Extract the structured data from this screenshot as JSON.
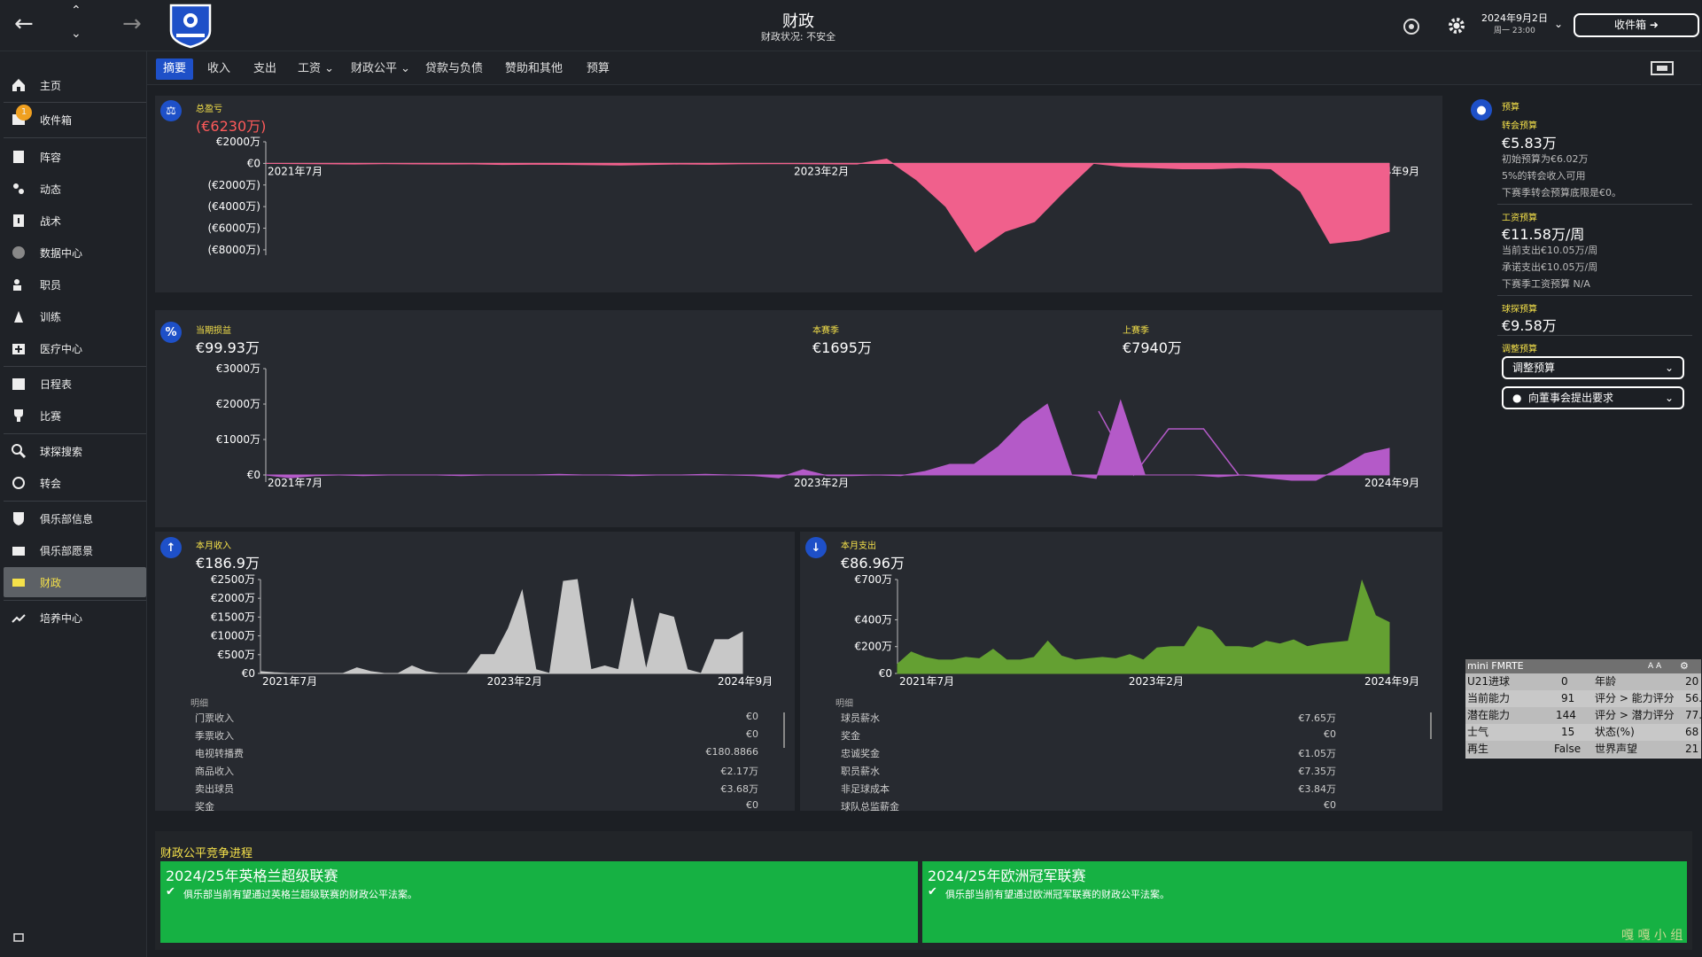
{
  "header": {
    "title": "财政",
    "subtitle": "财政状况: 不安全",
    "date": "2024年9月2日",
    "time": "周一 23:00",
    "inbox_label": "收件箱"
  },
  "tabs": [
    {
      "label": "摘要"
    },
    {
      "label": "收入"
    },
    {
      "label": "支出"
    },
    {
      "label": "工资 ⌄"
    },
    {
      "label": "财政公平 ⌄"
    },
    {
      "label": "贷款与负债"
    },
    {
      "label": "赞助和其他"
    },
    {
      "label": "预算"
    }
  ],
  "sidebar": {
    "badge": "1",
    "items": [
      {
        "label": "主页",
        "icon": "home-icon"
      },
      {
        "label": "收件箱",
        "icon": "inbox-icon"
      },
      {
        "label": "阵容",
        "icon": "squad-icon"
      },
      {
        "label": "动态",
        "icon": "dynamics-icon"
      },
      {
        "label": "战术",
        "icon": "tactics-icon"
      },
      {
        "label": "数据中心",
        "icon": "data-hub-icon"
      },
      {
        "label": "职员",
        "icon": "staff-icon"
      },
      {
        "label": "训练",
        "icon": "training-icon"
      },
      {
        "label": "医疗中心",
        "icon": "medical-icon"
      },
      {
        "label": "日程表",
        "icon": "schedule-icon"
      },
      {
        "label": "比赛",
        "icon": "trophy-icon"
      },
      {
        "label": "球探搜索",
        "icon": "scouting-icon"
      },
      {
        "label": "转会",
        "icon": "transfer-icon"
      },
      {
        "label": "俱乐部信息",
        "icon": "club-info-icon"
      },
      {
        "label": "俱乐部愿景",
        "icon": "club-vision-icon"
      },
      {
        "label": "财政",
        "icon": "finances-icon"
      },
      {
        "label": "培养中心",
        "icon": "development-icon"
      }
    ]
  },
  "profit_loss": {
    "label": "总盈亏",
    "value": "(€6230万)"
  },
  "current": {
    "label": "当期损益",
    "value": "€99.93万",
    "season_label": "本赛季",
    "season_value": "€1695万",
    "last_label": "上赛季",
    "last_value": "€7940万"
  },
  "income": {
    "label": "本月收入",
    "value": "€186.9万",
    "detail_title": "明细",
    "rows": [
      {
        "name": "门票收入",
        "value": "€0"
      },
      {
        "name": "季票收入",
        "value": "€0"
      },
      {
        "name": "电视转播费",
        "value": "€180.8866"
      },
      {
        "name": "商品收入",
        "value": "€2.17万"
      },
      {
        "name": "卖出球员",
        "value": "€3.68万"
      },
      {
        "name": "奖金",
        "value": "€0"
      }
    ]
  },
  "expense": {
    "label": "本月支出",
    "value": "€86.96万",
    "detail_title": "明细",
    "rows": [
      {
        "name": "球员薪水",
        "value": "€7.65万"
      },
      {
        "name": "奖金",
        "value": "€0"
      },
      {
        "name": "忠诚奖金",
        "value": "€1.05万"
      },
      {
        "name": "职员薪水",
        "value": "€7.35万"
      },
      {
        "name": "非足球成本",
        "value": "€3.84万"
      },
      {
        "name": "球队总监薪金",
        "value": "€0"
      }
    ]
  },
  "budget": {
    "title": "预算",
    "transfer_label": "转会预算",
    "transfer_value": "€5.83万",
    "transfer_notes": [
      "初始预算为€6.02万",
      "5%的转会收入可用",
      "下赛季转会预算底限是€0。"
    ],
    "wage_label": "工资预算",
    "wage_value": "€11.58万/周",
    "wage_notes": [
      "当前支出€10.05万/周",
      "承诺支出€10.05万/周",
      "下赛季工资预算 N/A"
    ],
    "scout_label": "球探预算",
    "scout_value": "€9.58万",
    "adjust_label": "调整预算",
    "adjust_dropdown": "调整预算",
    "board_dropdown": "向董事会提出要求"
  },
  "mini": {
    "title": "mini FMRTE",
    "font": "A A",
    "rows": [
      [
        "U21进球",
        "0",
        "年龄",
        "20"
      ],
      [
        "当前能力",
        "91",
        "评分 > 能力评分",
        "56."
      ],
      [
        "潜在能力",
        "144",
        "评分 > 潜力评分",
        "77."
      ],
      [
        "士气",
        "15",
        "状态(%)",
        "68"
      ],
      [
        "再生",
        "False",
        "世界声望",
        "21"
      ]
    ]
  },
  "ffp": {
    "title": "财政公平竞争进程",
    "boxes": [
      {
        "heading": "2024/25年英格兰超级联赛",
        "text": "俱乐部当前有望通过英格兰超级联赛的财政公平法案。"
      },
      {
        "heading": "2024/25年欧洲冠军联赛",
        "text": "俱乐部当前有望通过欧洲冠军联赛的财政公平法案。"
      }
    ]
  },
  "watermark": "嘎 嘎 小 组",
  "colors": {
    "accent": "#1e50c8",
    "highlight": "#f5e14a",
    "ffp_green": "#16b143",
    "pl_fill": "#f0608c",
    "current_fill": "#b45ac8",
    "income_fill": "#c8c8c8",
    "expense_fill": "#64a032"
  },
  "chart_data": [
    {
      "type": "area",
      "title": "总盈亏",
      "x_ticks": [
        "2021年7月",
        "2023年2月",
        "2024年9月"
      ],
      "y_ticks": [
        "€2000万",
        "€0",
        "(€2000万)",
        "(€4000万)",
        "(€6000万)",
        "(€8000万)"
      ],
      "ylim": [
        -8500,
        2000
      ],
      "values": [
        0,
        -20,
        -40,
        -60,
        -30,
        -50,
        -60,
        -50,
        -100,
        -80,
        -90,
        -120,
        -150,
        -100,
        -60,
        -80,
        -40,
        -30,
        -30,
        -50,
        -60,
        400,
        -1500,
        -4000,
        -8200,
        -6300,
        -5400,
        -2600,
        0,
        -300,
        -400,
        -500,
        -500,
        -400,
        -500,
        -2600,
        -7400,
        -7100,
        -6300
      ]
    },
    {
      "type": "area",
      "title": "当期损益",
      "x_ticks": [
        "2021年7月",
        "2023年2月",
        "2024年9月"
      ],
      "y_ticks": [
        "€3000万",
        "€2000万",
        "€1000万",
        "€0"
      ],
      "ylim": [
        -200,
        3000
      ],
      "series": [
        {
          "name": "本赛季",
          "values": [
            0,
            -80,
            -20,
            0,
            -20,
            0,
            0,
            0,
            -20,
            0,
            0,
            0,
            20,
            0,
            0,
            -20,
            0,
            0,
            20,
            0,
            -20,
            -80,
            150,
            -20,
            -20,
            0,
            -20,
            100,
            300,
            300,
            800,
            1500,
            2000,
            0,
            -100,
            2100,
            0,
            0,
            0,
            -50,
            0,
            -80,
            -150,
            -150,
            200,
            600,
            750
          ]
        },
        {
          "name": "上赛季",
          "values": [
            1800,
            0,
            1300,
            1300,
            0
          ]
        }
      ]
    },
    {
      "type": "area",
      "title": "本月收入",
      "x_ticks": [
        "2021年7月",
        "2023年2月",
        "2024年9月"
      ],
      "y_ticks": [
        "€2500万",
        "€2000万",
        "€1500万",
        "€1000万",
        "€500万",
        "€0"
      ],
      "ylim": [
        0,
        2500
      ],
      "values": [
        50,
        20,
        0,
        0,
        0,
        0,
        0,
        150,
        50,
        0,
        0,
        200,
        50,
        0,
        0,
        0,
        500,
        500,
        1200,
        2200,
        100,
        0,
        2450,
        2500,
        100,
        200,
        100,
        2000,
        100,
        1600,
        1500,
        100,
        0,
        900,
        900,
        1100
      ]
    },
    {
      "type": "area",
      "title": "本月支出",
      "x_ticks": [
        "2021年7月",
        "2023年2月",
        "2024年9月"
      ],
      "y_ticks": [
        "€700万",
        "€400万",
        "€200万",
        "€0"
      ],
      "ylim": [
        0,
        700
      ],
      "values": [
        70,
        160,
        120,
        100,
        100,
        120,
        110,
        180,
        100,
        100,
        120,
        240,
        130,
        100,
        110,
        120,
        110,
        140,
        100,
        190,
        200,
        200,
        350,
        320,
        200,
        200,
        190,
        240,
        220,
        250,
        200,
        220,
        230,
        240,
        690,
        430,
        380
      ]
    }
  ]
}
